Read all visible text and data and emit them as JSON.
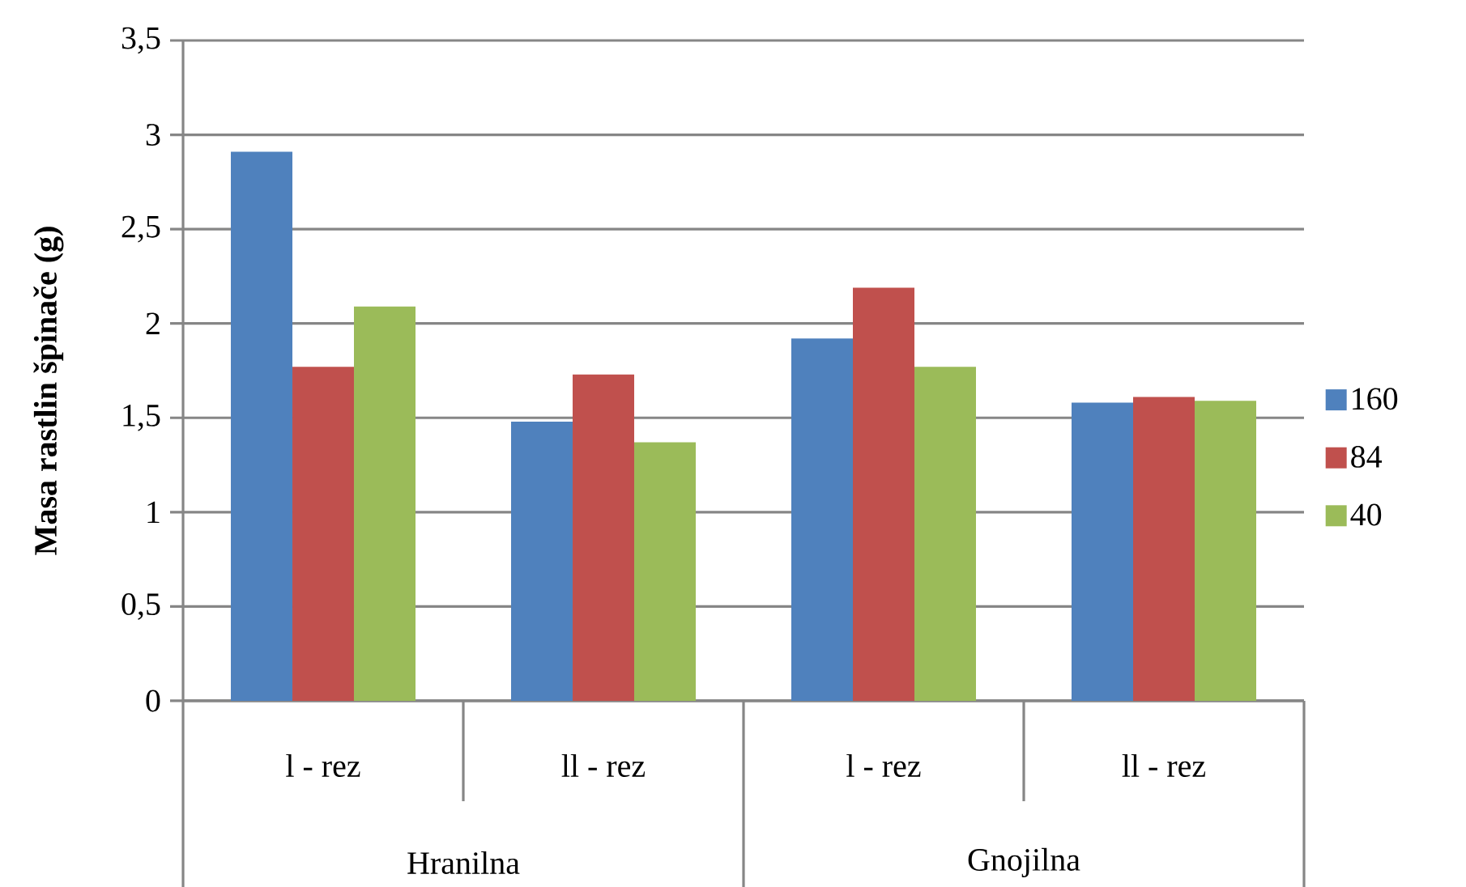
{
  "chart_data": {
    "type": "bar",
    "ylabel": "Masa rastlin špinače (g)",
    "categories": [
      "l - rez",
      "ll - rez",
      "l - rez",
      "ll - rez"
    ],
    "series": [
      {
        "name": "160",
        "color": "#4f81bd",
        "values": [
          2.91,
          1.48,
          1.92,
          1.58
        ]
      },
      {
        "name": "84",
        "color": "#c0504d",
        "values": [
          1.77,
          1.73,
          2.19,
          1.61
        ]
      },
      {
        "name": "40",
        "color": "#9bbb59",
        "values": [
          2.09,
          1.37,
          1.77,
          1.59
        ]
      }
    ],
    "ylim": [
      0,
      3.5
    ],
    "yticks": [
      0,
      {
        "value": 0.5,
        "label": "0,5"
      },
      1,
      {
        "value": 1.5,
        "label": "1,5"
      },
      2,
      {
        "value": 2.5,
        "label": "2,5"
      },
      3,
      {
        "value": 3.5,
        "label": "3,5"
      }
    ],
    "grid": "y",
    "legend": "right",
    "annotations": [
      "Hranilna",
      "Gnojilna"
    ]
  }
}
